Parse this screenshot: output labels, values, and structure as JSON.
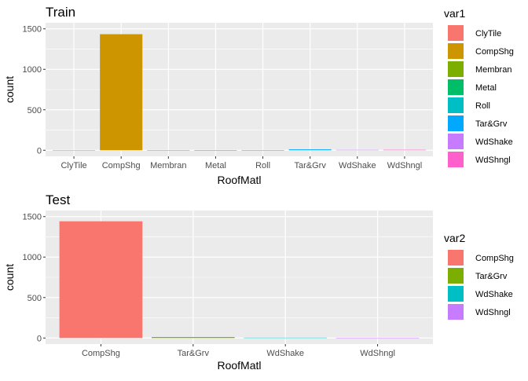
{
  "chart_data": [
    {
      "type": "bar",
      "title": "Train",
      "xlabel": "RoofMatl",
      "ylabel": "count",
      "categories": [
        "ClyTile",
        "CompShg",
        "Membran",
        "Metal",
        "Roll",
        "Tar&Grv",
        "WdShake",
        "WdShngl"
      ],
      "values": [
        1,
        1434,
        1,
        1,
        1,
        11,
        5,
        6
      ],
      "colors": [
        "#F8766D",
        "#CD9600",
        "#7CAE00",
        "#00BE67",
        "#00BFC4",
        "#00A9FF",
        "#C77CFF",
        "#FF61CC"
      ],
      "ylim": [
        0,
        1500
      ],
      "yticks": [
        0,
        500,
        1000,
        1500
      ],
      "legend": {
        "title": "var1",
        "position": "right"
      },
      "grid": true
    },
    {
      "type": "bar",
      "title": "Test",
      "xlabel": "RoofMatl",
      "ylabel": "count",
      "categories": [
        "CompShg",
        "Tar&Grv",
        "WdShake",
        "WdShngl"
      ],
      "values": [
        1442,
        12,
        4,
        1
      ],
      "colors": [
        "#F8766D",
        "#7CAE00",
        "#00BFC4",
        "#C77CFF"
      ],
      "ylim": [
        0,
        1500
      ],
      "yticks": [
        0,
        500,
        1000,
        1500
      ],
      "legend": {
        "title": "var2",
        "position": "right"
      },
      "grid": true
    }
  ]
}
